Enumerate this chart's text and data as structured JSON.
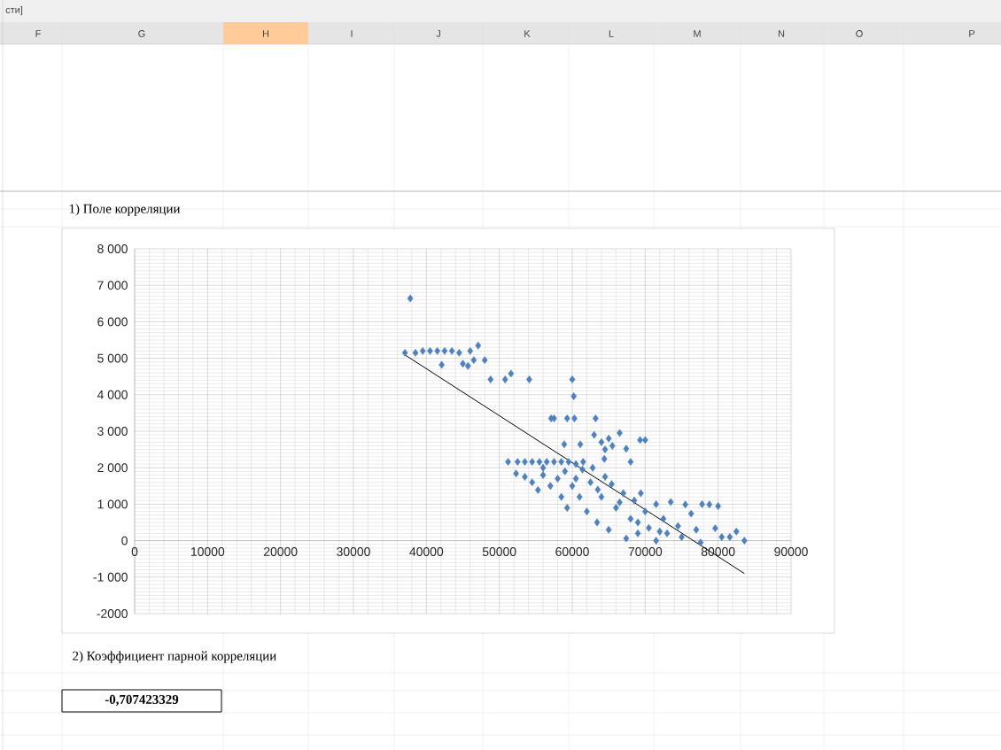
{
  "chart_data": {
    "type": "scatter",
    "title": "1) Поле корреляции",
    "annotations": [
      "сти]",
      "F",
      "G",
      "H",
      "I",
      "J",
      "K",
      "L",
      "M",
      "N",
      "O",
      "P",
      "2) Коэффициент парной корреляции",
      "-0,707423329"
    ],
    "xlim": [
      0,
      90000
    ],
    "ylim": [
      -2000,
      8000
    ],
    "xticks": [
      0,
      10000,
      20000,
      30000,
      40000,
      50000,
      60000,
      70000,
      80000,
      90000
    ],
    "yticks": [
      {
        "value": -2000,
        "label": "-2000"
      },
      {
        "value": -1000,
        "label": "-1 000"
      },
      0,
      {
        "value": 1000,
        "label": "1 000"
      },
      {
        "value": 2000,
        "label": "2 000"
      },
      {
        "value": 3000,
        "label": "3 000"
      },
      {
        "value": 4000,
        "label": "4 000"
      },
      {
        "value": 5000,
        "label": "5 000"
      },
      {
        "value": 6000,
        "label": "6 000"
      },
      {
        "value": 7000,
        "label": "7 000"
      },
      {
        "value": 8000,
        "label": "8 000"
      }
    ],
    "grid": true,
    "marker": "diamond",
    "series": [
      {
        "color": "#4f81bd",
        "x": [
          37060,
          37790,
          38500,
          39500,
          40500,
          41500,
          42100,
          42500,
          43500,
          44500,
          45000,
          45700,
          46000,
          46500,
          47100,
          48000,
          48800,
          50800,
          51600,
          54100,
          60000,
          60200,
          57100,
          57500,
          59300,
          60300,
          63200,
          58900,
          61100,
          63000,
          64000,
          65000,
          65500,
          66500,
          64500,
          67400,
          69300,
          70000,
          64400,
          68000,
          51200,
          52300,
          52500,
          53500,
          54500,
          55500,
          56500,
          57500,
          58500,
          59500,
          60500,
          61500,
          62800,
          53500,
          54500,
          55300,
          56000,
          57000,
          58000,
          58500,
          59300,
          60000,
          61000,
          61400,
          62000,
          62500,
          63400,
          64000,
          64500,
          65400,
          65000,
          66000,
          67400,
          67000,
          68000,
          68500,
          69400,
          69000,
          70000,
          70500,
          71500,
          71500,
          72500,
          73500,
          73000,
          74500,
          75500,
          75000,
          76300,
          77000,
          77600,
          77800,
          78800,
          79600,
          80000,
          80500,
          81600,
          82500,
          83600,
          56000,
          59000,
          60500,
          63500,
          66500,
          69000,
          72000
        ],
        "values": [
          5150,
          6640,
          5150,
          5200,
          5200,
          5200,
          4820,
          5200,
          5200,
          5150,
          4850,
          4790,
          5200,
          4950,
          5350,
          4950,
          4420,
          4420,
          4580,
          4420,
          4420,
          3960,
          3350,
          3350,
          3350,
          3350,
          3350,
          2640,
          2640,
          2900,
          2700,
          2800,
          2600,
          2950,
          2500,
          2520,
          2760,
          2760,
          2240,
          2160,
          2160,
          1840,
          2160,
          2160,
          2160,
          2160,
          2160,
          2160,
          2160,
          2160,
          2100,
          2160,
          2000,
          1750,
          1600,
          1390,
          1800,
          1500,
          1700,
          1200,
          900,
          1500,
          1200,
          1950,
          800,
          1600,
          500,
          1200,
          1750,
          1550,
          300,
          900,
          60,
          1300,
          600,
          1100,
          1300,
          200,
          800,
          350,
          0,
          1000,
          600,
          1060,
          200,
          400,
          990,
          100,
          740,
          300,
          -50,
          1000,
          990,
          340,
          950,
          100,
          100,
          250,
          0,
          2000,
          1900,
          1700,
          1400,
          1050,
          500,
          250
        ]
      },
      {
        "type": "line",
        "marker": "none",
        "color": "#000000",
        "x": [
          37000,
          83600
        ],
        "values": [
          5100,
          -900
        ]
      }
    ]
  }
}
